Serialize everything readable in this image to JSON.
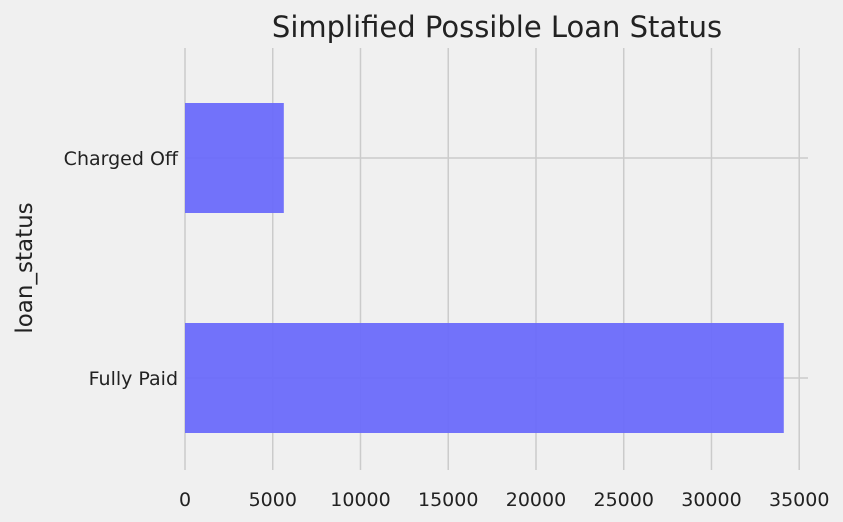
{
  "chart_data": {
    "type": "bar",
    "orientation": "horizontal",
    "title": "Simplified Possible Loan Status",
    "xlabel": "",
    "ylabel": "loan_status",
    "categories": [
      "Charged Off",
      "Fully Paid"
    ],
    "values": [
      5630,
      34120
    ],
    "xlim": [
      0,
      35500
    ],
    "xticks": [
      0,
      5000,
      10000,
      15000,
      20000,
      25000,
      30000,
      35000
    ],
    "grid": true,
    "bar_color": "#6a6afa",
    "background_color": "#f0f0f0",
    "grid_color": "#cbcbcb"
  }
}
